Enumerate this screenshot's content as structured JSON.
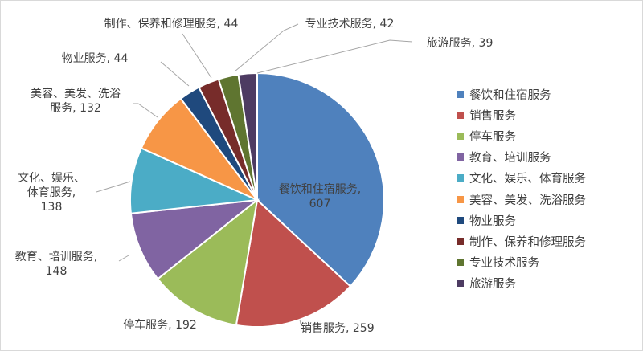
{
  "chart_data": {
    "type": "pie",
    "title": "",
    "legend_position": "right",
    "slices": [
      {
        "name": "餐饮和住宿服务",
        "value": 607,
        "color": "#4F81BD",
        "label_lines": [
          "餐饮和住宿服务,",
          "607"
        ]
      },
      {
        "name": "销售服务",
        "value": 259,
        "color": "#C0504D",
        "label_lines": [
          "销售服务, 259"
        ]
      },
      {
        "name": "停车服务",
        "value": 192,
        "color": "#9BBB59",
        "label_lines": [
          "停车服务, 192"
        ]
      },
      {
        "name": "教育、培训服务",
        "value": 148,
        "color": "#8064A2",
        "label_lines": [
          "教育、培训服务,",
          "148"
        ]
      },
      {
        "name": "文化、娱乐、体育服务",
        "value": 138,
        "color": "#4BACC6",
        "label_lines": [
          "文化、娱乐、",
          "体育服务,",
          "138"
        ]
      },
      {
        "name": "美容、美发、洗浴服务",
        "value": 132,
        "color": "#F79646",
        "label_lines": [
          "美容、美发、洗浴",
          "服务, 132"
        ]
      },
      {
        "name": "物业服务",
        "value": 44,
        "color": "#1F497D",
        "label_lines": [
          "物业服务, 44"
        ]
      },
      {
        "name": "制作、保养和修理服务",
        "value": 44,
        "color": "#772C2A",
        "label_lines": [
          "制作、保养和修理服务, 44"
        ]
      },
      {
        "name": "专业技术服务",
        "value": 42,
        "color": "#5F7530",
        "label_lines": [
          "专业技术服务, 42"
        ]
      },
      {
        "name": "旅游服务",
        "value": 39,
        "color": "#4D3B62",
        "label_lines": [
          "旅游服务, 39"
        ]
      }
    ]
  }
}
